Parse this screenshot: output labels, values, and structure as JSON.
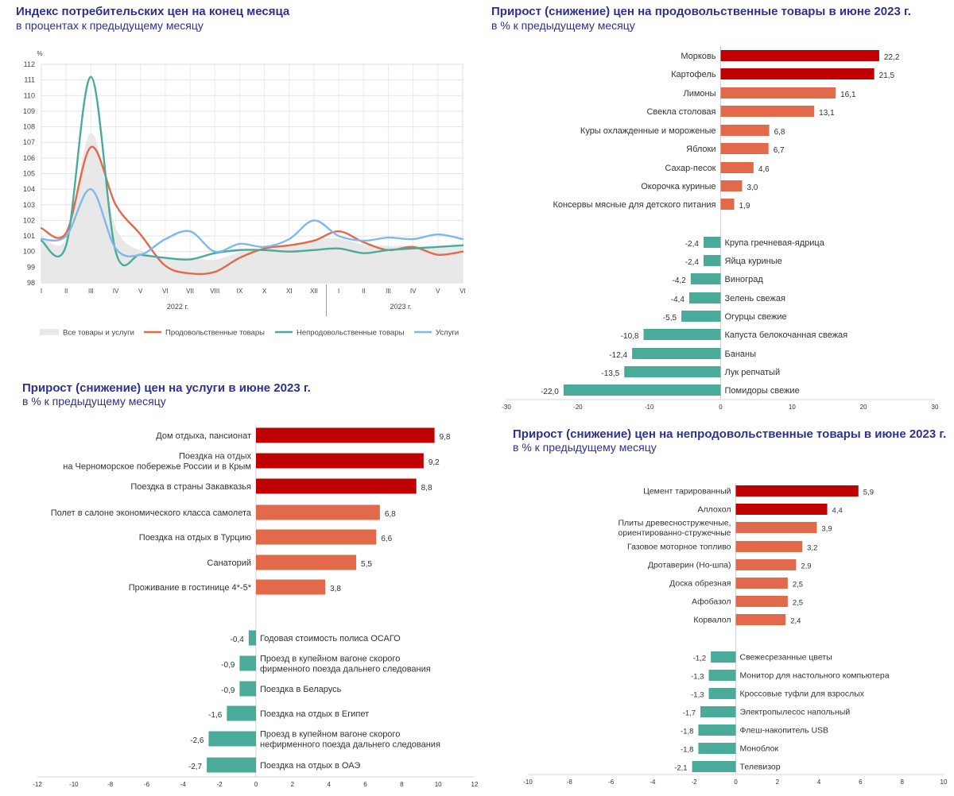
{
  "panels": {
    "cpi": {
      "title": "Индекс потребительских цен на конец месяца",
      "subtitle": "в процентах к предыдущему месяцу"
    },
    "food": {
      "title": "Прирост (снижение) цен на продовольственные товары в июне 2023 г.",
      "subtitle": "в % к предыдущему месяцу"
    },
    "services": {
      "title": "Прирост (снижение) цен на услуги в июне 2023 г.",
      "subtitle": "в % к предыдущему месяцу"
    },
    "nonfood": {
      "title": "Прирост (снижение) цен на непродовольственные товары в июне 2023 г.",
      "subtitle": "в % к предыдущему месяцу"
    }
  },
  "colors": {
    "dark_red": "#c00000",
    "orange": "#e2694a",
    "teal": "#4aab9a",
    "blue": "#7fb8ea",
    "gray_area": "#e8e8e8",
    "title": "#2e3192"
  },
  "chart_data": [
    {
      "id": "cpi",
      "type": "line",
      "ylabel": "%",
      "ylim": [
        98,
        112
      ],
      "yticks": [
        98,
        99,
        100,
        101,
        102,
        103,
        104,
        105,
        106,
        107,
        108,
        109,
        110,
        111,
        112
      ],
      "x": [
        "I",
        "II",
        "III",
        "IV",
        "V",
        "VI",
        "VII",
        "VIII",
        "IX",
        "X",
        "XI",
        "XII",
        "I",
        "II",
        "III",
        "IV",
        "V",
        "VI"
      ],
      "year_labels": [
        "2022 г.",
        "2023 г."
      ],
      "grid": true,
      "legend_position": "bottom",
      "series": [
        {
          "name": "Все товары и услуги",
          "style": "area",
          "values": [
            100.99,
            100.83,
            107.61,
            101.56,
            100.05,
            99.65,
            99.61,
            99.48,
            99.95,
            100.18,
            100.37,
            100.78,
            100.84,
            100.46,
            100.37,
            100.38,
            100.31,
            100.37
          ]
        },
        {
          "name": "Продовольственные товары",
          "style": "line",
          "values": [
            101.5,
            101.2,
            106.7,
            103.0,
            101.1,
            99.1,
            98.6,
            98.7,
            99.6,
            100.2,
            100.4,
            100.7,
            101.3,
            100.6,
            100.1,
            100.3,
            99.8,
            100.0
          ]
        },
        {
          "name": "Непродовольственные товары",
          "style": "line",
          "values": [
            100.7,
            100.4,
            111.2,
            100.0,
            99.8,
            99.6,
            99.5,
            99.9,
            100.1,
            100.1,
            100.0,
            100.1,
            100.2,
            99.9,
            100.1,
            100.2,
            100.3,
            100.4
          ]
        },
        {
          "name": "Услуги",
          "style": "line",
          "values": [
            100.8,
            101.0,
            104.0,
            100.2,
            99.8,
            100.8,
            101.3,
            100.0,
            100.5,
            100.3,
            100.8,
            102.0,
            101.0,
            100.7,
            100.9,
            100.8,
            101.1,
            100.8
          ]
        }
      ]
    },
    {
      "id": "food",
      "type": "bar",
      "orientation": "horizontal",
      "xlim": [
        -30,
        30
      ],
      "xticks": [
        -30,
        -20,
        -10,
        0,
        10,
        20,
        30
      ],
      "items": [
        {
          "label": "Морковь",
          "value": 22.2,
          "value_label": "22,2"
        },
        {
          "label": "Картофель",
          "value": 21.5,
          "value_label": "21,5"
        },
        {
          "label": "Лимоны",
          "value": 16.1,
          "value_label": "16,1"
        },
        {
          "label": "Свекла столовая",
          "value": 13.1,
          "value_label": "13,1"
        },
        {
          "label": "Куры  охлажденные и мороженые",
          "value": 6.8,
          "value_label": "6,8"
        },
        {
          "label": "Яблоки",
          "value": 6.7,
          "value_label": "6,7"
        },
        {
          "label": "Сахар-песок",
          "value": 4.6,
          "value_label": "4,6"
        },
        {
          "label": "Окорочка куриные",
          "value": 3.0,
          "value_label": "3,0"
        },
        {
          "label": "Консервы мясные для детского питания",
          "value": 1.9,
          "value_label": "1,9"
        },
        {
          "label": "Крупа гречневая-ядрица",
          "value": -2.4,
          "value_label": "-2,4"
        },
        {
          "label": "Яйца куриные",
          "value": -2.4,
          "value_label": "-2,4"
        },
        {
          "label": "Виноград",
          "value": -4.2,
          "value_label": "-4,2"
        },
        {
          "label": "Зелень свежая",
          "value": -4.4,
          "value_label": "-4,4"
        },
        {
          "label": "Огурцы свежие",
          "value": -5.5,
          "value_label": "-5,5"
        },
        {
          "label": "Капуста белокочанная свежая",
          "value": -10.8,
          "value_label": "-10,8"
        },
        {
          "label": "Бананы",
          "value": -12.4,
          "value_label": "-12,4"
        },
        {
          "label": "Лук репчатый",
          "value": -13.5,
          "value_label": "-13,5"
        },
        {
          "label": "Помидоры свежие",
          "value": -22.0,
          "value_label": "-22,0"
        }
      ]
    },
    {
      "id": "services",
      "type": "bar",
      "orientation": "horizontal",
      "xlim": [
        -12,
        12
      ],
      "xticks": [
        -12,
        -10,
        -8,
        -6,
        -4,
        -2,
        0,
        2,
        4,
        6,
        8,
        10,
        12
      ],
      "items": [
        {
          "label": "Дом отдыха,  пансионат",
          "value": 9.8,
          "value_label": "9,8"
        },
        {
          "label": "Поездка на отдых\nна Черноморское побережье России и в Крым",
          "value": 9.2,
          "value_label": "9,2"
        },
        {
          "label": "Поездка в страны Закавказья",
          "value": 8.8,
          "value_label": "8,8"
        },
        {
          "label": "Полет в салоне экономического класса самолета",
          "value": 6.8,
          "value_label": "6,8"
        },
        {
          "label": "Поездка на отдых в Турцию",
          "value": 6.6,
          "value_label": "6,6"
        },
        {
          "label": "Санаторий",
          "value": 5.5,
          "value_label": "5,5"
        },
        {
          "label": "Проживание в гостинице 4*-5*",
          "value": 3.8,
          "value_label": "3,8"
        },
        {
          "label": "Годовая стоимость полиса ОСАГО",
          "value": -0.4,
          "value_label": "-0,4"
        },
        {
          "label": "Проезд в купейном вагоне скорого\nфирменного поезда дальнего следования",
          "value": -0.9,
          "value_label": "-0,9"
        },
        {
          "label": "Поездка в Беларусь",
          "value": -0.9,
          "value_label": "-0,9"
        },
        {
          "label": "Поездка на отдых в Египет",
          "value": -1.6,
          "value_label": "-1,6"
        },
        {
          "label": "Проезд в купейном вагоне скорого\nнефирменного поезда дальнего следования",
          "value": -2.6,
          "value_label": "-2,6"
        },
        {
          "label": "Поездка на отдых в ОАЭ",
          "value": -2.7,
          "value_label": "-2,7"
        }
      ]
    },
    {
      "id": "nonfood",
      "type": "bar",
      "orientation": "horizontal",
      "xlim": [
        -10,
        10
      ],
      "xticks": [
        -10,
        -8,
        -6,
        -4,
        -2,
        0,
        2,
        4,
        6,
        8,
        10
      ],
      "items": [
        {
          "label": "Цемент тарированный",
          "value": 5.9,
          "value_label": "5,9"
        },
        {
          "label": "Аллохол",
          "value": 4.4,
          "value_label": "4,4"
        },
        {
          "label": "Плиты древесностружечные,\nориентированно-стружечные",
          "value": 3.9,
          "value_label": "3,9"
        },
        {
          "label": "Газовое моторное топливо",
          "value": 3.2,
          "value_label": "3,2"
        },
        {
          "label": "Дротаверин (Но-шпа)",
          "value": 2.9,
          "value_label": "2,9"
        },
        {
          "label": "Доска обрезная",
          "value": 2.5,
          "value_label": "2,5"
        },
        {
          "label": "Афобазол",
          "value": 2.5,
          "value_label": "2,5"
        },
        {
          "label": "Корвалол",
          "value": 2.4,
          "value_label": "2,4"
        },
        {
          "label": "Свежесрезанные цветы",
          "value": -1.2,
          "value_label": "-1,2"
        },
        {
          "label": "Монитор для настольного компьютера",
          "value": -1.3,
          "value_label": "-1,3"
        },
        {
          "label": "Кроссовые туфли  для взрослых",
          "value": -1.3,
          "value_label": "-1,3"
        },
        {
          "label": "Электропылесос напольный",
          "value": -1.7,
          "value_label": "-1,7"
        },
        {
          "label": "Флеш-накопитель USB",
          "value": -1.8,
          "value_label": "-1,8"
        },
        {
          "label": "Моноблок",
          "value": -1.8,
          "value_label": "-1,8"
        },
        {
          "label": "Телевизор",
          "value": -2.1,
          "value_label": "-2,1"
        }
      ]
    }
  ]
}
